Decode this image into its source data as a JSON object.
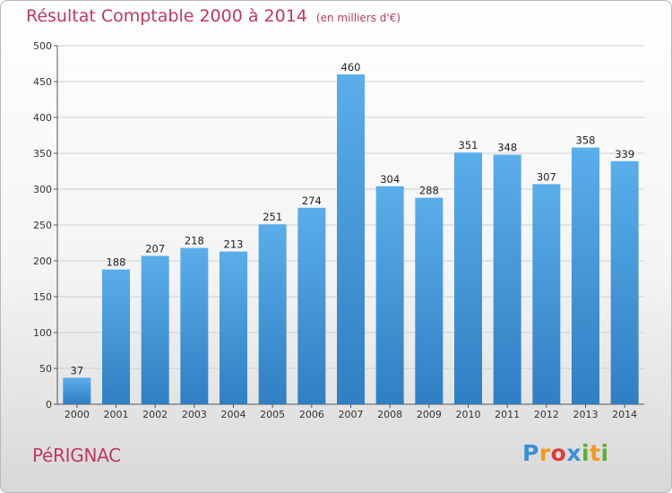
{
  "title": "Résultat Comptable 2000 à 2014",
  "subtitle": "(en milliers d'€)",
  "commune": "PéRIGNAC",
  "logo": {
    "text": "Proxiti",
    "letters": [
      {
        "ch": "P",
        "color": "#3a8fd6"
      },
      {
        "ch": "r",
        "color": "#f39a1e"
      },
      {
        "ch": "o",
        "color": "#e23b3b"
      },
      {
        "ch": "x",
        "color": "#3a8fd6"
      },
      {
        "ch": "i",
        "color": "#5bb030"
      },
      {
        "ch": "t",
        "color": "#f39a1e"
      },
      {
        "ch": "i",
        "color": "#5bb030"
      }
    ]
  },
  "colors": {
    "bar": "#4a9fe0",
    "bar_dark": "#2f7fc2",
    "accent": "#c0395f"
  },
  "chart_data": {
    "type": "bar",
    "title": "Résultat Comptable 2000 à 2014",
    "xlabel": "",
    "ylabel": "",
    "categories": [
      "2000",
      "2001",
      "2002",
      "2003",
      "2004",
      "2005",
      "2006",
      "2007",
      "2008",
      "2009",
      "2010",
      "2011",
      "2012",
      "2013",
      "2014"
    ],
    "values": [
      37,
      188,
      207,
      218,
      213,
      251,
      274,
      460,
      304,
      288,
      351,
      348,
      307,
      358,
      339
    ],
    "ylim": [
      0,
      500
    ],
    "yticks": [
      0,
      50,
      100,
      150,
      200,
      250,
      300,
      350,
      400,
      450,
      500
    ],
    "grid": true,
    "legend": "none"
  }
}
